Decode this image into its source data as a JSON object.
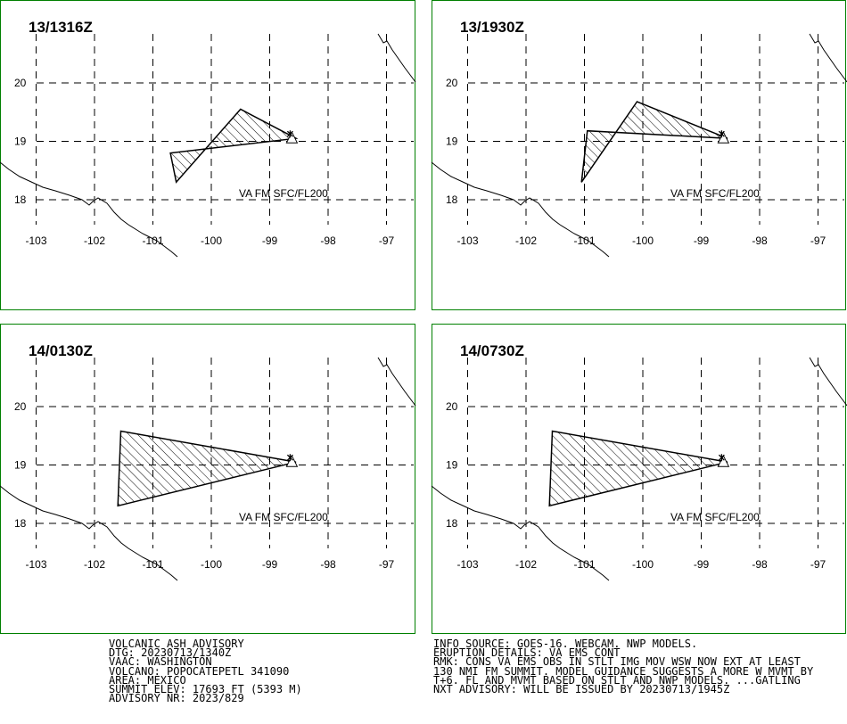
{
  "panels": [
    {
      "time_label": "13/1316Z",
      "va_label": "VA FM SFC/FL200",
      "polygon": [
        [
          -100.6,
          18.3
        ],
        [
          -99.5,
          19.55
        ],
        [
          -98.55,
          19.05
        ],
        [
          -100.7,
          18.8
        ]
      ]
    },
    {
      "time_label": "13/1930Z",
      "va_label": "VA FM SFC/FL200",
      "polygon": [
        [
          -101.05,
          18.3
        ],
        [
          -100.1,
          19.68
        ],
        [
          -98.55,
          19.05
        ],
        [
          -100.95,
          19.18
        ]
      ]
    },
    {
      "time_label": "14/0130Z",
      "va_label": "VA FM SFC/FL200",
      "polygon": [
        [
          -101.6,
          18.3
        ],
        [
          -101.55,
          19.58
        ],
        [
          -98.55,
          19.05
        ]
      ]
    },
    {
      "time_label": "14/0730Z",
      "va_label": "VA FM SFC/FL200",
      "polygon": [
        [
          -101.6,
          18.3
        ],
        [
          -101.55,
          19.58
        ],
        [
          -98.55,
          19.05
        ]
      ]
    }
  ],
  "map": {
    "lon_ticks": [
      -103,
      -102,
      -101,
      -100,
      -99,
      -98,
      -97
    ],
    "lon_labels": [
      "-103",
      "-102",
      "-101",
      "-100",
      "-99",
      "-98",
      "-97"
    ],
    "lat_ticks": [
      20,
      19,
      18
    ],
    "lat_labels": [
      "20",
      "19",
      "18"
    ],
    "volcano": [
      -98.62,
      19.02
    ],
    "border_color": "#008000"
  },
  "advisory_left": [
    "VOLCANIC ASH ADVISORY",
    "DTG: 20230713/1340Z",
    "VAAC: WASHINGTON",
    "VOLCANO: POPOCATEPETL 341090",
    "AREA: MEXICO",
    "SUMMIT ELEV: 17693 FT (5393 M)",
    "ADVISORY NR: 2023/829"
  ],
  "advisory_right": [
    "INFO SOURCE: GOES-16. WEBCAM. NWP MODELS.",
    "ERUPTION DETAILS: VA EMS CONT",
    "RMK: CONS VA EMS OBS IN STLT IMG MOV WSW NOW EXT AT LEAST",
    "130 NMI FM SUMMIT. MODEL GUIDANCE SUGGESTS A MORE W MVMT BY",
    "T+6. FL AND MVMT BASED ON STLT AND NWP MODELS. ...GATLING",
    "NXT ADVISORY: WILL BE ISSUED BY 20230713/1945Z"
  ]
}
